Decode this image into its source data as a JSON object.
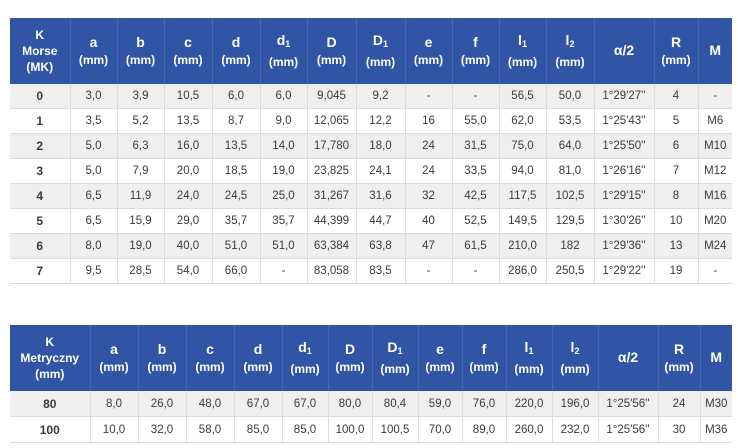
{
  "table1": {
    "headers": {
      "k": [
        "K",
        "Morse",
        "(MK)"
      ],
      "a": [
        "a",
        "(mm)"
      ],
      "b": [
        "b",
        "(mm)"
      ],
      "c": [
        "c",
        "(mm)"
      ],
      "d": [
        "d",
        "(mm)"
      ],
      "d1": [
        "d",
        "1",
        "(mm)"
      ],
      "D": [
        "D",
        "(mm)"
      ],
      "D1": [
        "D",
        "1",
        "(mm)"
      ],
      "e": [
        "e",
        "(mm)"
      ],
      "f": [
        "f",
        "(mm)"
      ],
      "l1": [
        "l",
        "1",
        "(mm)"
      ],
      "l2": [
        "l",
        "2",
        "(mm)"
      ],
      "alpha": [
        "α/2"
      ],
      "R": [
        "R",
        "(mm)"
      ],
      "M": [
        "M"
      ]
    },
    "rows": [
      [
        "0",
        "3,0",
        "3,9",
        "10,5",
        "6,0",
        "6,0",
        "9,045",
        "9,2",
        "-",
        "-",
        "56,5",
        "50,0",
        "1°29'27''",
        "4",
        "-"
      ],
      [
        "1",
        "3,5",
        "5,2",
        "13,5",
        "8,7",
        "9,0",
        "12,065",
        "12,2",
        "16",
        "55,0",
        "62,0",
        "53,5",
        "1°25'43''",
        "5",
        "M6"
      ],
      [
        "2",
        "5,0",
        "6,3",
        "16,0",
        "13,5",
        "14,0",
        "17,780",
        "18,0",
        "24",
        "31,5",
        "75,0",
        "64,0",
        "1°25'50''",
        "6",
        "M10"
      ],
      [
        "3",
        "5,0",
        "7,9",
        "20,0",
        "18,5",
        "19,0",
        "23,825",
        "24,1",
        "24",
        "33,5",
        "94,0",
        "81,0",
        "1°26'16''",
        "7",
        "M12"
      ],
      [
        "4",
        "6,5",
        "11,9",
        "24,0",
        "24,5",
        "25,0",
        "31,267",
        "31,6",
        "32",
        "42,5",
        "117,5",
        "102,5",
        "1°29'15''",
        "8",
        "M16"
      ],
      [
        "5",
        "6,5",
        "15,9",
        "29,0",
        "35,7",
        "35,7",
        "44,399",
        "44,7",
        "40",
        "52,5",
        "149,5",
        "129,5",
        "1°30'26''",
        "10",
        "M20"
      ],
      [
        "6",
        "8,0",
        "19,0",
        "40,0",
        "51,0",
        "51,0",
        "63,384",
        "63,8",
        "47",
        "61,5",
        "210,0",
        "182",
        "1°29'36''",
        "13",
        "M24"
      ],
      [
        "7",
        "9,5",
        "28,5",
        "54,0",
        "66,0",
        "-",
        "83,058",
        "83,5",
        "-",
        "-",
        "286,0",
        "250,5",
        "1°29'22''",
        "19",
        "-"
      ]
    ]
  },
  "table2": {
    "headers": {
      "k": [
        "K",
        "Metryczny",
        "(mm)"
      ],
      "a": [
        "a",
        "(mm)"
      ],
      "b": [
        "b",
        "(mm)"
      ],
      "c": [
        "c",
        "(mm)"
      ],
      "d": [
        "d",
        "(mm)"
      ],
      "d1": [
        "d",
        "1",
        "(mm)"
      ],
      "D": [
        "D",
        "(mm)"
      ],
      "D1": [
        "D",
        "1",
        "(mm)"
      ],
      "e": [
        "e",
        "(mm)"
      ],
      "f": [
        "f",
        "(mm)"
      ],
      "l1": [
        "l",
        "1",
        "(mm)"
      ],
      "l2": [
        "l",
        "2",
        "(mm)"
      ],
      "alpha": [
        "α/2"
      ],
      "R": [
        "R",
        "(mm)"
      ],
      "M": [
        "M"
      ]
    },
    "rows": [
      [
        "80",
        "8,0",
        "26,0",
        "48,0",
        "67,0",
        "67,0",
        "80,0",
        "80,4",
        "59,0",
        "76,0",
        "220,0",
        "196,0",
        "1°25'56''",
        "24",
        "M30"
      ],
      [
        "100",
        "10,0",
        "32,0",
        "58,0",
        "85,0",
        "85,0",
        "100,0",
        "100,5",
        "70,0",
        "89,0",
        "260,0",
        "232,0",
        "1°25'56''",
        "30",
        "M36"
      ]
    ]
  }
}
